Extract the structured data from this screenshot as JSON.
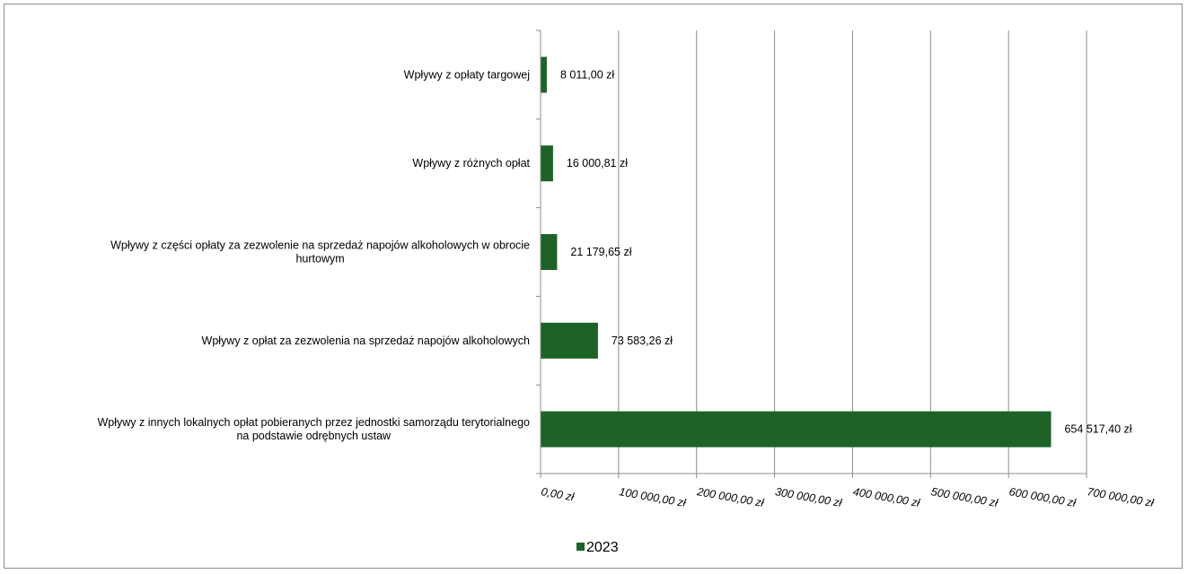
{
  "chart_data": {
    "type": "bar",
    "orientation": "horizontal",
    "categories": [
      [
        "Wpływy z opłaty targowej"
      ],
      [
        "Wpływy z różnych opłat"
      ],
      [
        "Wpływy z części opłaty za zezwolenie na sprzedaż napojów alkoholowych w obrocie",
        "hurtowym"
      ],
      [
        "Wpływy z opłat za zezwolenia na sprzedaż napojów alkoholowych"
      ],
      [
        "Wpływy z innych lokalnych opłat pobieranych przez jednostki samorządu terytorialnego",
        "na podstawie odrębnych ustaw"
      ]
    ],
    "series": [
      {
        "name": "2023",
        "color": "#1e6228",
        "values": [
          8011.0,
          16000.81,
          21179.65,
          73583.26,
          654517.4
        ],
        "labels": [
          "8 011,00 zł",
          "16 000,81 zł",
          "21 179,65 zł",
          "73 583,26 zł",
          "654 517,40 zł"
        ]
      }
    ],
    "xlim": [
      0,
      700000
    ],
    "x_ticks": [
      0,
      100000,
      200000,
      300000,
      400000,
      500000,
      600000,
      700000
    ],
    "x_tick_labels": [
      "0,00 zł",
      "100 000,00 zł",
      "200 000,00 zł",
      "300 000,00 zł",
      "400 000,00 zł",
      "500 000,00 zł",
      "600 000,00 zł",
      "700 000,00 zł"
    ],
    "grid": true,
    "legend_position": "bottom",
    "title": "",
    "xlabel": "",
    "ylabel": ""
  }
}
